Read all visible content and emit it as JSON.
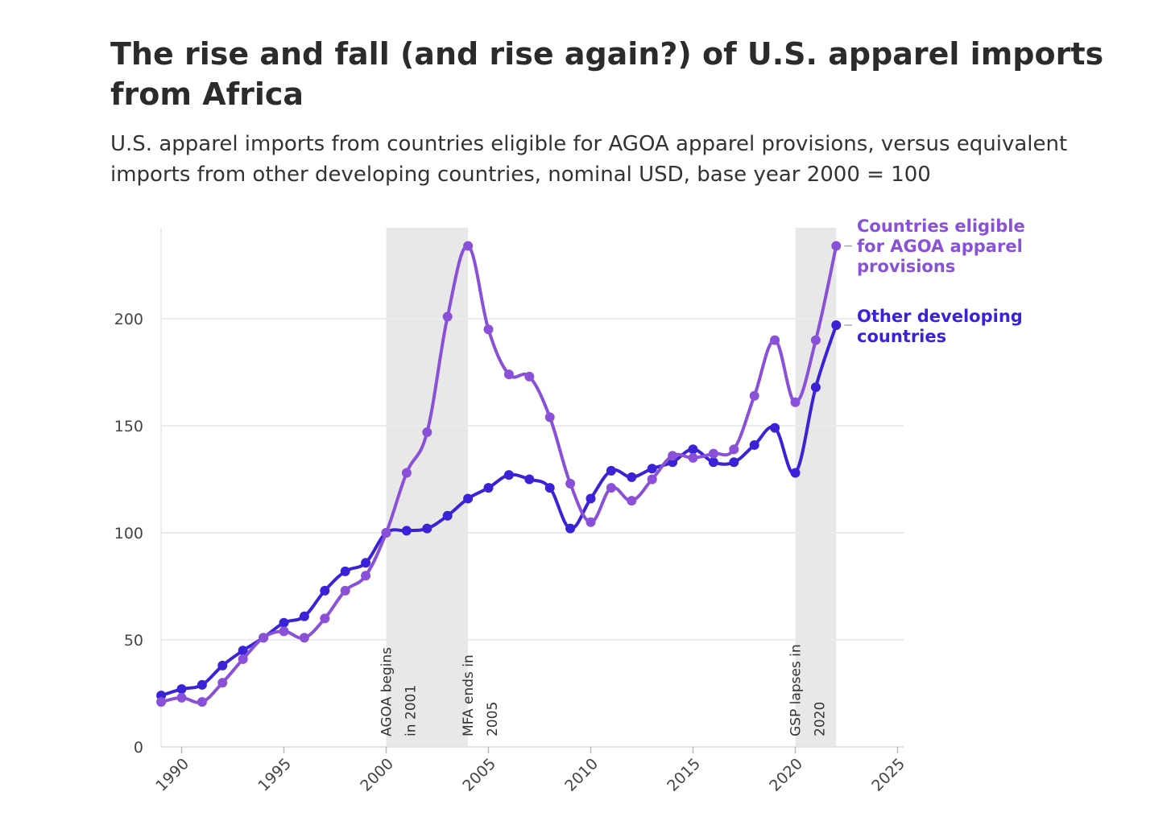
{
  "title": "The rise and fall (and rise again?) of U.S. apparel imports from Africa",
  "subtitle": "U.S. apparel imports from countries eligible for AGOA apparel provisions, versus equivalent imports from other developing countries, nominal USD, base year 2000 = 100",
  "colors": {
    "agoa": "#8a51d8",
    "other": "#3a22d6",
    "shade": "#e8e8e8",
    "grid": "#ebebeb"
  },
  "chart_data": {
    "type": "line",
    "xlim": [
      1989,
      2025
    ],
    "ylim": [
      0,
      240
    ],
    "x_ticks": [
      1990,
      1995,
      2000,
      2005,
      2010,
      2015,
      2020,
      2025
    ],
    "y_ticks": [
      0,
      50,
      100,
      150,
      200
    ],
    "grid": true,
    "x": [
      1989,
      1990,
      1991,
      1992,
      1993,
      1994,
      1995,
      1996,
      1997,
      1998,
      1999,
      2000,
      2001,
      2002,
      2003,
      2004,
      2005,
      2006,
      2007,
      2008,
      2009,
      2010,
      2011,
      2012,
      2013,
      2014,
      2015,
      2016,
      2017,
      2018,
      2019,
      2020,
      2021,
      2022
    ],
    "series": [
      {
        "name": "Countries eligible for AGOA apparel provisions",
        "key": "agoa",
        "values": [
          21,
          23,
          21,
          30,
          41,
          51,
          54,
          51,
          60,
          73,
          80,
          100,
          128,
          147,
          201,
          234,
          195,
          174,
          173,
          154,
          123,
          105,
          121,
          115,
          125,
          136,
          135,
          137,
          139,
          164,
          190,
          161,
          190,
          234
        ]
      },
      {
        "name": "Other developing countries",
        "key": "other",
        "values": [
          24,
          27,
          29,
          38,
          45,
          51,
          58,
          61,
          73,
          82,
          86,
          100,
          101,
          102,
          108,
          116,
          121,
          127,
          125,
          121,
          102,
          116,
          129,
          126,
          130,
          133,
          139,
          133,
          133,
          141,
          149,
          128,
          168,
          197
        ]
      }
    ],
    "shaded_periods": [
      {
        "from": 2000,
        "to": 2004,
        "label_lines": [
          "AGOA begins",
          "in 2001"
        ],
        "label_at": 2000
      },
      {
        "from": 2004,
        "to": 2004,
        "label_lines": [
          "MFA ends in",
          "2005"
        ],
        "label_at": 2004
      },
      {
        "from": 2020,
        "to": 2022,
        "label_lines": [
          "GSP lapses in",
          "2020"
        ],
        "label_at": 2020
      }
    ],
    "series_labels": {
      "agoa": [
        "Countries eligible",
        "for AGOA apparel",
        "provisions"
      ],
      "other": [
        "Other developing",
        "countries"
      ]
    }
  }
}
